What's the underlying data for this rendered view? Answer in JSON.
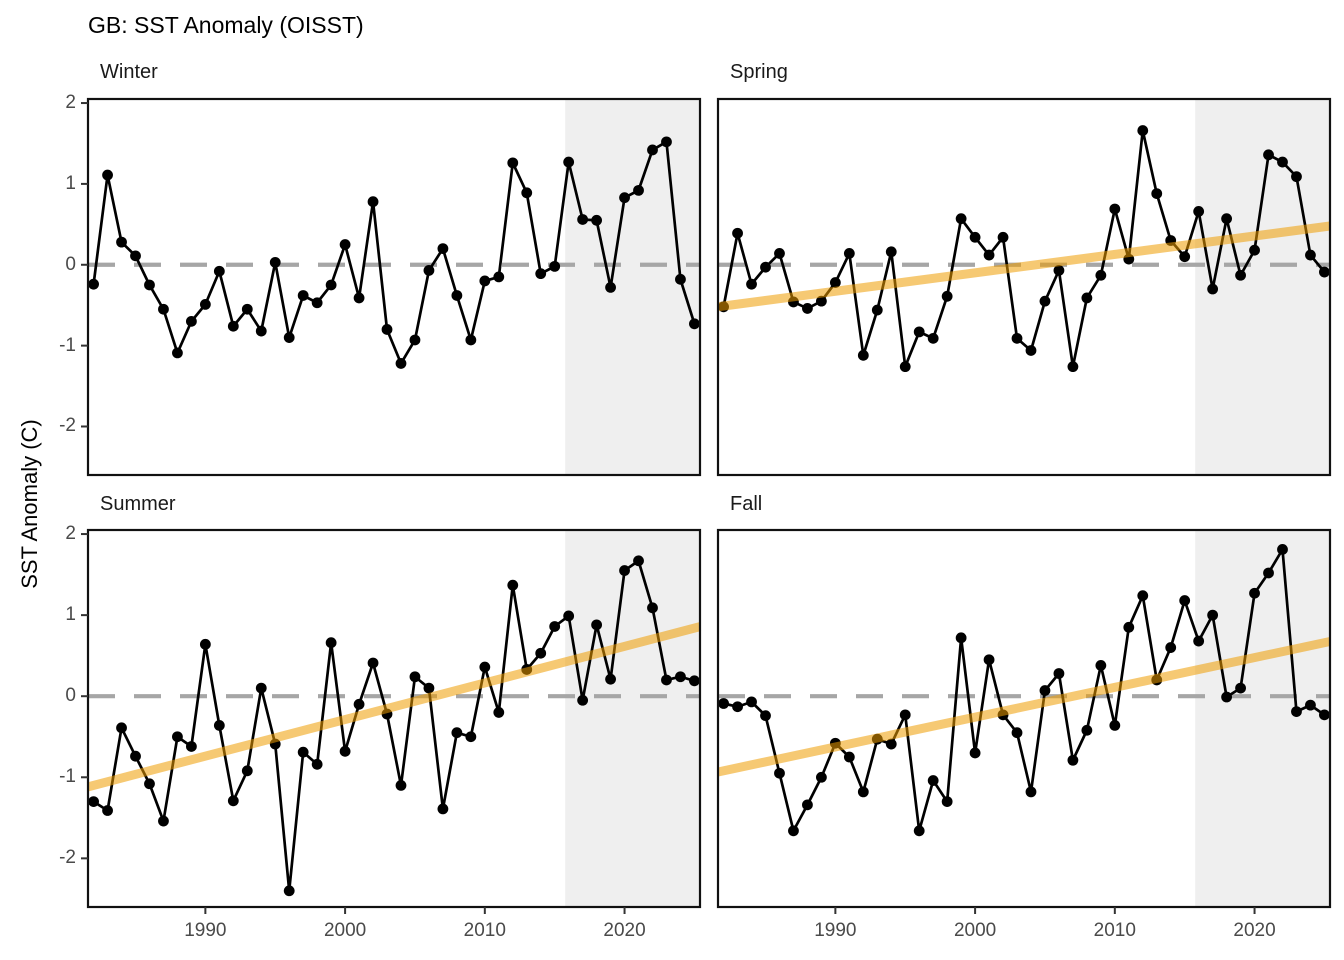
{
  "chart_data": {
    "type": "line",
    "title": "GB: SST Anomaly (OISST)",
    "ylabel": "SST Anomaly (C)",
    "x_start_year": 1982,
    "x": [
      1982,
      1983,
      1984,
      1985,
      1986,
      1987,
      1988,
      1989,
      1990,
      1991,
      1992,
      1993,
      1994,
      1995,
      1996,
      1997,
      1998,
      1999,
      2000,
      2001,
      2002,
      2003,
      2004,
      2005,
      2006,
      2007,
      2008,
      2009,
      2010,
      2011,
      2012,
      2013,
      2014,
      2015,
      2016,
      2017,
      2018,
      2019,
      2020,
      2021,
      2022,
      2023,
      2024,
      2025
    ],
    "xlim": [
      1981.6,
      2025.4
    ],
    "ylim": [
      -2.6,
      2.05
    ],
    "x_ticks": [
      1990,
      2000,
      2010,
      2020
    ],
    "y_ticks": [
      2,
      1,
      0,
      -1,
      -2
    ],
    "zero_line": 0,
    "forecast_shade_start": 2015.75,
    "legend_position": "none",
    "grid": "off",
    "panels": [
      {
        "label": "Winter",
        "values": [
          -0.24,
          1.11,
          0.28,
          0.11,
          -0.25,
          -0.55,
          -1.09,
          -0.7,
          -0.49,
          -0.08,
          -0.76,
          -0.55,
          -0.82,
          0.03,
          -0.9,
          -0.38,
          -0.47,
          -0.25,
          0.25,
          -0.41,
          0.78,
          -0.8,
          -1.22,
          -0.93,
          -0.07,
          0.2,
          -0.38,
          -0.93,
          -0.2,
          -0.15,
          1.26,
          0.89,
          -0.11,
          -0.02,
          1.27,
          0.56,
          0.55,
          -0.28,
          0.83,
          0.92,
          1.42,
          1.52,
          -0.18,
          -0.73
        ],
        "trend": null
      },
      {
        "label": "Spring",
        "values": [
          -0.52,
          0.39,
          -0.24,
          -0.03,
          0.14,
          -0.46,
          -0.54,
          -0.45,
          -0.22,
          0.14,
          -1.12,
          -0.56,
          0.16,
          -1.26,
          -0.83,
          -0.91,
          -0.39,
          0.57,
          0.34,
          0.12,
          0.34,
          -0.91,
          -1.06,
          -0.45,
          -0.07,
          -1.26,
          -0.41,
          -0.13,
          0.69,
          0.07,
          1.66,
          0.88,
          0.3,
          0.1,
          0.66,
          -0.3,
          0.57,
          -0.13,
          0.18,
          1.36,
          1.27,
          1.09,
          0.12,
          -0.09
        ],
        "trend": {
          "value_1982": -0.51,
          "value_2025": 0.47
        }
      },
      {
        "label": "Summer",
        "values": [
          -1.3,
          -1.41,
          -0.39,
          -0.74,
          -1.08,
          -1.54,
          -0.5,
          -0.62,
          0.64,
          -0.36,
          -1.29,
          -0.92,
          0.1,
          -0.59,
          -2.4,
          -0.69,
          -0.84,
          0.66,
          -0.68,
          -0.1,
          0.41,
          -0.22,
          -1.1,
          0.24,
          0.1,
          -1.39,
          -0.45,
          -0.5,
          0.36,
          -0.2,
          1.37,
          0.33,
          0.53,
          0.86,
          0.99,
          -0.05,
          0.88,
          0.21,
          1.55,
          1.67,
          1.09,
          0.2,
          0.24,
          0.19
        ],
        "trend": {
          "value_1982": -1.1,
          "value_2025": 0.84
        }
      },
      {
        "label": "Fall",
        "values": [
          -0.09,
          -0.13,
          -0.07,
          -0.24,
          -0.95,
          -1.66,
          -1.34,
          -1.0,
          -0.58,
          -0.75,
          -1.18,
          -0.53,
          -0.59,
          -0.23,
          -1.66,
          -1.04,
          -1.3,
          0.72,
          -0.7,
          0.45,
          -0.23,
          -0.45,
          -1.18,
          0.07,
          0.28,
          -0.79,
          -0.42,
          0.38,
          -0.36,
          0.85,
          1.24,
          0.2,
          0.6,
          1.18,
          0.68,
          1.0,
          -0.01,
          0.1,
          1.27,
          1.52,
          1.81,
          -0.19,
          -0.11,
          -0.23
        ],
        "trend": {
          "value_1982": -0.92,
          "value_2025": 0.66
        }
      }
    ],
    "colors": {
      "point": "#000000",
      "line": "#000000",
      "trend": "#EF9D00",
      "trend_opacity": 0.55,
      "zero_dash": "#A6A6A6",
      "forecast_shade": "#EFEFEF",
      "panel_border": "#111111",
      "tick_label": "#4a4a4a",
      "background": "#ffffff"
    }
  }
}
